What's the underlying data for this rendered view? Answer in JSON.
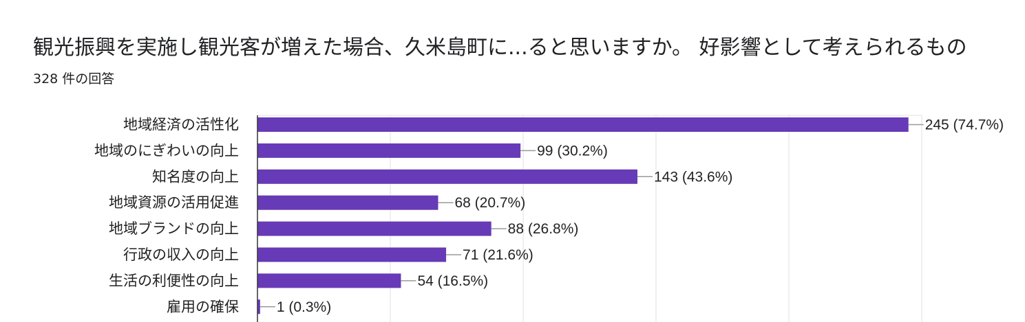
{
  "header": {
    "title": "観光振興を実施し観光客が増えた場合、久米島町に...ると思いますか。 好影響として考えられるもの",
    "response_count": "328 件の回答"
  },
  "colors": {
    "bar": "#673ab7",
    "grid": "#e0e0e0",
    "axis": "#333333",
    "leader": "#999999",
    "text": "#222222"
  },
  "chart_data": {
    "type": "bar",
    "orientation": "horizontal",
    "title": "観光振興を実施し観光客が増えた場合、久米島町に...ると思いますか。 好影響として考えられるもの",
    "categories": [
      "地域経済の活性化",
      "地域のにぎわいの向上",
      "知名度の向上",
      "地域資源の活用促進",
      "地域ブランドの向上",
      "行政の収入の向上",
      "生活の利便性の向上",
      "雇用の確保"
    ],
    "values": [
      245,
      99,
      143,
      68,
      88,
      71,
      54,
      1
    ],
    "labels": [
      "245 (74.7%)",
      "99 (30.2%)",
      "143 (43.6%)",
      "68 (20.7%)",
      "88 (26.8%)",
      "71 (21.6%)",
      "54 (16.5%)",
      "1 (0.3%)"
    ],
    "xlim": [
      0,
      250
    ],
    "grid": true,
    "legend": "none"
  }
}
